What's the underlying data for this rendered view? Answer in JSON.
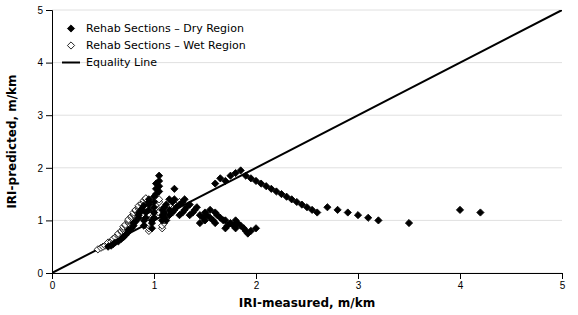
{
  "chart_data": {
    "type": "scatter",
    "xlabel": "IRI-measured, m/km",
    "ylabel": "IRI-predicted, m/km",
    "xlim": [
      0,
      5
    ],
    "ylim": [
      0,
      5
    ],
    "xticks": [
      0,
      1,
      2,
      3,
      4,
      5
    ],
    "yticks": [
      0,
      1,
      2,
      3,
      4,
      5
    ],
    "grid": "y",
    "legend": "top-left",
    "series": [
      {
        "name": "Rehab Sections – Dry Region",
        "type": "scatter",
        "color": "#000000",
        "marker": "diamond",
        "x": [
          0.55,
          0.58,
          0.6,
          0.62,
          0.65,
          0.68,
          0.7,
          0.72,
          0.75,
          0.75,
          0.78,
          0.8,
          0.8,
          0.82,
          0.85,
          0.85,
          0.85,
          0.88,
          0.88,
          0.9,
          0.9,
          0.9,
          0.92,
          0.92,
          0.95,
          0.95,
          0.95,
          0.95,
          0.98,
          0.98,
          0.98,
          1.0,
          1.0,
          1.0,
          1.0,
          1.0,
          1.02,
          1.02,
          1.02,
          1.05,
          1.05,
          1.05,
          1.05,
          1.08,
          1.08,
          1.08,
          1.1,
          1.1,
          1.1,
          1.12,
          1.12,
          1.15,
          1.15,
          1.15,
          1.18,
          1.18,
          1.2,
          1.2,
          1.2,
          1.22,
          1.25,
          1.25,
          1.28,
          1.28,
          1.3,
          1.3,
          1.32,
          1.35,
          1.35,
          1.38,
          1.4,
          1.42,
          1.45,
          1.45,
          1.48,
          1.5,
          1.5,
          1.52,
          1.55,
          1.55,
          1.58,
          1.6,
          1.6,
          1.62,
          1.65,
          1.68,
          1.7,
          1.7,
          1.72,
          1.75,
          1.78,
          1.8,
          1.8,
          1.82,
          1.85,
          1.88,
          1.9,
          1.92,
          1.95,
          2.0,
          1.6,
          1.65,
          1.7,
          1.75,
          1.8,
          1.85,
          1.9,
          1.95,
          2.0,
          2.05,
          2.1,
          2.15,
          2.2,
          2.25,
          2.3,
          2.35,
          2.4,
          2.45,
          2.5,
          2.55,
          2.6,
          2.7,
          2.8,
          2.9,
          3.0,
          3.1,
          3.2,
          3.5,
          4.0,
          4.2
        ],
        "values": [
          0.5,
          0.52,
          0.55,
          0.58,
          0.6,
          0.65,
          0.68,
          0.72,
          0.78,
          0.82,
          0.85,
          0.9,
          0.95,
          0.98,
          1.05,
          1.1,
          1.15,
          1.18,
          1.22,
          1.28,
          0.9,
          1.0,
          1.05,
          1.15,
          1.2,
          1.3,
          1.35,
          1.4,
          0.85,
          0.95,
          1.0,
          1.05,
          1.15,
          1.25,
          1.35,
          1.45,
          1.5,
          1.6,
          1.7,
          1.55,
          1.65,
          1.75,
          1.85,
          1.0,
          1.1,
          1.2,
          1.05,
          1.15,
          1.25,
          1.0,
          1.3,
          1.1,
          1.2,
          1.4,
          1.15,
          1.35,
          1.2,
          1.4,
          1.6,
          1.25,
          1.1,
          1.3,
          1.15,
          1.35,
          1.2,
          1.4,
          1.25,
          1.1,
          1.3,
          1.15,
          1.2,
          1.25,
          0.95,
          1.1,
          1.05,
          1.0,
          1.15,
          1.1,
          1.05,
          1.2,
          1.0,
          0.95,
          1.15,
          1.1,
          1.05,
          1.0,
          0.85,
          1.0,
          0.9,
          0.95,
          0.9,
          0.85,
          1.0,
          0.95,
          0.9,
          0.85,
          0.8,
          0.75,
          0.8,
          0.85,
          1.7,
          1.8,
          1.75,
          1.85,
          1.9,
          1.95,
          1.85,
          1.8,
          1.75,
          1.7,
          1.65,
          1.6,
          1.55,
          1.5,
          1.45,
          1.4,
          1.35,
          1.3,
          1.25,
          1.2,
          1.15,
          1.25,
          1.2,
          1.15,
          1.1,
          1.05,
          1.0,
          0.95,
          1.2,
          1.15
        ]
      },
      {
        "name": "Rehab Sections – Wet Region",
        "type": "scatter",
        "color": "#000000",
        "marker": "diamond-open",
        "x": [
          0.45,
          0.48,
          0.5,
          0.52,
          0.55,
          0.55,
          0.58,
          0.6,
          0.6,
          0.62,
          0.65,
          0.65,
          0.65,
          0.68,
          0.68,
          0.7,
          0.7,
          0.7,
          0.72,
          0.72,
          0.75,
          0.75,
          0.75,
          0.75,
          0.78,
          0.78,
          0.8,
          0.8,
          0.8,
          0.82,
          0.82,
          0.85,
          0.85,
          0.85,
          0.88,
          0.88,
          0.9,
          0.9,
          0.92,
          0.92,
          0.95,
          0.95,
          0.95,
          0.95,
          0.98,
          0.98,
          1.0,
          1.0,
          1.0,
          1.02,
          1.02,
          1.05,
          1.05,
          1.08,
          1.08,
          1.1,
          1.1,
          1.12,
          1.15,
          1.15,
          1.18,
          1.2,
          1.22,
          1.25
        ],
        "values": [
          0.45,
          0.48,
          0.5,
          0.52,
          0.55,
          0.58,
          0.6,
          0.62,
          0.65,
          0.68,
          0.7,
          0.72,
          0.75,
          0.78,
          0.8,
          0.82,
          0.85,
          0.88,
          0.9,
          0.92,
          0.95,
          0.98,
          1.0,
          1.02,
          1.05,
          1.08,
          1.1,
          1.12,
          1.15,
          1.18,
          1.2,
          1.22,
          1.25,
          1.28,
          1.3,
          1.32,
          1.35,
          1.38,
          1.4,
          1.42,
          0.8,
          0.85,
          0.9,
          0.95,
          1.0,
          1.05,
          1.1,
          1.15,
          1.2,
          1.25,
          1.3,
          1.35,
          1.4,
          0.85,
          0.9,
          0.95,
          1.0,
          1.05,
          1.1,
          1.15,
          1.2,
          1.25,
          1.3,
          1.35
        ]
      },
      {
        "name": "Equality Line",
        "type": "line",
        "color": "#000000",
        "x": [
          0,
          5
        ],
        "values": [
          0,
          5
        ]
      }
    ]
  }
}
